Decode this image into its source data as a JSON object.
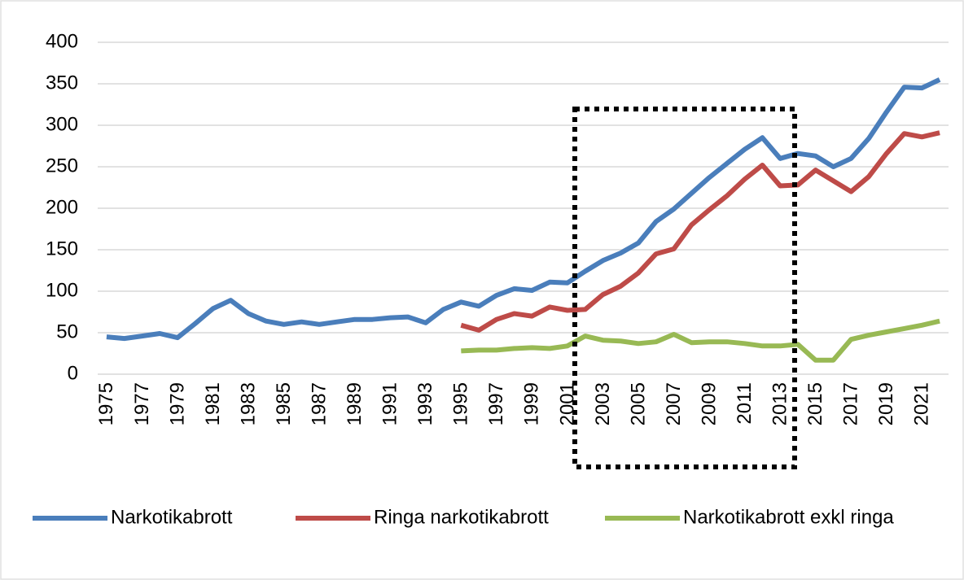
{
  "chart_data": {
    "type": "line",
    "categories": [
      "1975",
      null,
      "1977",
      null,
      "1979",
      null,
      "1981",
      null,
      "1983",
      null,
      "1985",
      null,
      "1987",
      null,
      "1989",
      null,
      "1991",
      null,
      "1993",
      null,
      "1995",
      null,
      "1997",
      null,
      "1999",
      null,
      "2001",
      null,
      "2003",
      null,
      "2005",
      null,
      "2007",
      null,
      "2009",
      null,
      "2011",
      null,
      "2013",
      null,
      "2015",
      null,
      "2017",
      null,
      "2019",
      null,
      "2021",
      null
    ],
    "series": [
      {
        "name": "Narkotikabrott",
        "color": "#4a7ebb",
        "values": [
          45,
          43,
          46,
          49,
          44,
          61,
          79,
          89,
          73,
          64,
          60,
          63,
          60,
          63,
          66,
          66,
          68,
          69,
          62,
          78,
          87,
          82,
          95,
          103,
          101,
          111,
          110,
          124,
          137,
          146,
          158,
          184,
          199,
          218,
          237,
          254,
          271,
          285,
          260,
          266,
          263,
          250,
          260,
          284,
          316,
          346,
          345,
          355
        ]
      },
      {
        "name": "Ringa narkotikabrott",
        "color": "#be4b48",
        "values": [
          null,
          null,
          null,
          null,
          null,
          null,
          null,
          null,
          null,
          null,
          null,
          null,
          null,
          null,
          null,
          null,
          null,
          null,
          null,
          null,
          59,
          53,
          66,
          73,
          70,
          81,
          77,
          78,
          96,
          106,
          122,
          145,
          151,
          180,
          198,
          215,
          235,
          252,
          227,
          228,
          246,
          233,
          220,
          238,
          266,
          290,
          286,
          291
        ]
      },
      {
        "name": "Narkotikabrott exkl ringa",
        "color": "#98b954",
        "values": [
          null,
          null,
          null,
          null,
          null,
          null,
          null,
          null,
          null,
          null,
          null,
          null,
          null,
          null,
          null,
          null,
          null,
          null,
          null,
          null,
          28,
          29,
          29,
          31,
          32,
          31,
          34,
          46,
          41,
          40,
          37,
          39,
          48,
          38,
          39,
          39,
          37,
          34,
          34,
          36,
          17,
          17,
          42,
          47,
          51,
          55,
          59,
          64
        ]
      }
    ],
    "ylim": [
      0,
      400
    ],
    "yticks": [
      0,
      50,
      100,
      150,
      200,
      250,
      300,
      350,
      400
    ],
    "grid": true,
    "legend": "bottom"
  }
}
